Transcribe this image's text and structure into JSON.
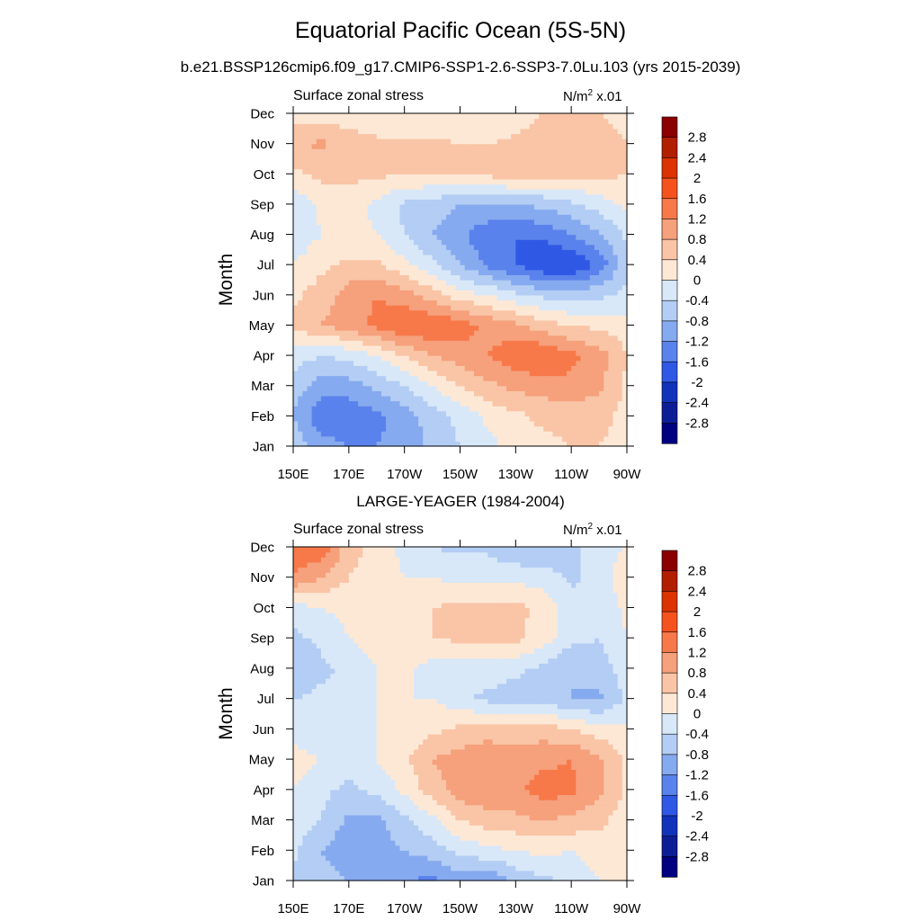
{
  "title": "Equatorial Pacific Ocean (5S-5N)",
  "subtitle": "b.e21.BSSP126cmip6.f09_g17.CMIP6-SSP1-2.6-SSP3-7.0Lu.103 (yrs 2015-2039)",
  "colorbar": {
    "levels": [
      "2.8",
      "2.4",
      "2",
      "1.6",
      "1.2",
      "0.8",
      "0.4",
      "0",
      "-0.4",
      "-0.8",
      "-1.2",
      "-1.6",
      "-2",
      "-2.4",
      "-2.8"
    ],
    "colors": [
      "#8b0000",
      "#b21e00",
      "#dd3300",
      "#f5521e",
      "#f7794a",
      "#f6a07c",
      "#f9c5a6",
      "#fde8d6",
      "#d8e8f8",
      "#b3cdf4",
      "#86aaef",
      "#5a82ec",
      "#2f59e5",
      "#1133bb",
      "#0d1d96",
      "#000080"
    ]
  },
  "panels": [
    {
      "chart_data": {
        "type": "heatmap",
        "title": "",
        "left_string": "Surface zonal stress",
        "right_string": "N/m",
        "right_sup": "2",
        "right_suffix": " x.01",
        "xlabel": "",
        "ylabel": "Month",
        "x": [
          150,
          160,
          170,
          180,
          190,
          200,
          210,
          220,
          230,
          240,
          250,
          260,
          270
        ],
        "x_tick_labels": [
          "150E",
          "170E",
          "170W",
          "150W",
          "130W",
          "110W",
          "90W"
        ],
        "y_tick_labels": [
          "Jan",
          "Feb",
          "Mar",
          "Apr",
          "May",
          "Jun",
          "Jul",
          "Aug",
          "Sep",
          "Oct",
          "Nov",
          "Dec"
        ],
        "units_scale": "x.01",
        "values": [
          [
            -0.5,
            -1.0,
            -1.2,
            -1.2,
            -1.1,
            -0.7,
            -0.4,
            -0.1,
            0.1,
            0.3,
            0.4,
            0.4,
            0.3
          ],
          [
            -0.8,
            -1.5,
            -1.5,
            -1.3,
            -1.0,
            -0.6,
            -0.3,
            0.1,
            0.3,
            0.5,
            0.5,
            0.5,
            0.3
          ],
          [
            -0.6,
            -1.0,
            -1.0,
            -0.7,
            -0.4,
            0.0,
            0.4,
            0.7,
            0.9,
            1.0,
            1.1,
            0.9,
            0.3
          ],
          [
            -0.2,
            -0.4,
            -0.3,
            0.0,
            0.4,
            0.8,
            1.0,
            1.2,
            1.5,
            1.6,
            1.3,
            1.0,
            0.4
          ],
          [
            0.5,
            0.8,
            1.0,
            1.3,
            1.6,
            1.6,
            1.4,
            1.1,
            0.9,
            0.6,
            0.4,
            0.3,
            0.2
          ],
          [
            0.3,
            0.6,
            1.0,
            1.2,
            1.0,
            0.6,
            0.2,
            0.0,
            -0.3,
            -0.5,
            -0.6,
            -0.5,
            -0.3
          ],
          [
            0.0,
            0.3,
            0.5,
            0.5,
            0.1,
            -0.3,
            -0.8,
            -1.3,
            -1.6,
            -2.0,
            -2.0,
            -1.5,
            -0.5
          ],
          [
            -0.3,
            0.0,
            0.1,
            0.0,
            -0.4,
            -0.8,
            -1.1,
            -1.5,
            -1.6,
            -1.5,
            -1.2,
            -0.9,
            -0.3
          ],
          [
            -0.3,
            0.1,
            0.2,
            -0.1,
            -0.5,
            -0.6,
            -0.8,
            -0.8,
            -0.8,
            -0.7,
            -0.5,
            -0.2,
            0.1
          ],
          [
            0.3,
            0.5,
            0.5,
            0.5,
            0.4,
            0.4,
            0.5,
            0.5,
            0.6,
            0.5,
            0.5,
            0.5,
            0.4
          ],
          [
            0.7,
            0.9,
            0.6,
            0.5,
            0.5,
            0.5,
            0.4,
            0.4,
            0.5,
            0.6,
            0.6,
            0.5,
            0.4
          ],
          [
            0.2,
            0.2,
            0.2,
            0.1,
            0.0,
            0.0,
            0.0,
            0.0,
            0.2,
            0.4,
            0.4,
            0.4,
            0.3
          ]
        ]
      }
    },
    {
      "heading": "LARGE-YEAGER (1984-2004)",
      "chart_data": {
        "type": "heatmap",
        "title": "LARGE-YEAGER (1984-2004)",
        "left_string": "Surface zonal stress",
        "right_string": "N/m",
        "right_sup": "2",
        "right_suffix": " x.01",
        "xlabel": "",
        "ylabel": "Month",
        "x": [
          150,
          160,
          170,
          180,
          190,
          200,
          210,
          220,
          230,
          240,
          250,
          260,
          270
        ],
        "x_tick_labels": [
          "150E",
          "170E",
          "170W",
          "150W",
          "130W",
          "110W",
          "90W"
        ],
        "y_tick_labels": [
          "Jan",
          "Feb",
          "Mar",
          "Apr",
          "May",
          "Jun",
          "Jul",
          "Aug",
          "Sep",
          "Oct",
          "Nov",
          "Dec"
        ],
        "units_scale": "x.01",
        "values": [
          [
            -0.5,
            -0.6,
            -0.8,
            -1.0,
            -1.2,
            -1.3,
            -1.0,
            -1.2,
            -0.7,
            -0.5,
            -0.3,
            0.0,
            0.2
          ],
          [
            -0.3,
            -0.8,
            -1.1,
            -1.0,
            -0.8,
            -0.6,
            -0.3,
            -0.1,
            0.0,
            0.1,
            0.0,
            0.2,
            0.2
          ],
          [
            -0.2,
            -0.4,
            -0.9,
            -0.9,
            -0.5,
            -0.1,
            0.4,
            0.6,
            0.7,
            0.8,
            0.7,
            0.5,
            0.2
          ],
          [
            0.0,
            -0.3,
            -0.5,
            -0.3,
            0.1,
            0.6,
            1.0,
            1.2,
            1.1,
            1.4,
            1.3,
            0.9,
            0.3
          ],
          [
            0.2,
            0.0,
            -0.2,
            0.0,
            0.3,
            0.8,
            1.0,
            1.1,
            1.0,
            1.1,
            1.2,
            0.9,
            0.3
          ],
          [
            -0.2,
            -0.3,
            -0.2,
            0.0,
            0.1,
            0.3,
            0.5,
            0.6,
            0.6,
            0.6,
            0.4,
            0.2,
            0.1
          ],
          [
            -0.4,
            -0.3,
            -0.2,
            0.0,
            0.0,
            0.0,
            -0.3,
            -0.5,
            -0.6,
            -0.6,
            -0.8,
            -0.9,
            -0.3
          ],
          [
            -0.8,
            -0.5,
            -0.3,
            0.0,
            0.1,
            -0.2,
            -0.3,
            -0.2,
            -0.3,
            -0.5,
            -0.8,
            -0.6,
            -0.2
          ],
          [
            -0.5,
            -0.3,
            0.0,
            0.2,
            0.3,
            0.4,
            0.5,
            0.6,
            0.5,
            0.2,
            -0.3,
            -0.4,
            0.0
          ],
          [
            -0.2,
            0.0,
            0.1,
            0.2,
            0.3,
            0.4,
            0.5,
            0.5,
            0.5,
            0.3,
            -0.2,
            -0.3,
            0.1
          ],
          [
            1.2,
            0.8,
            0.4,
            0.2,
            0.0,
            0.0,
            -0.1,
            -0.1,
            -0.1,
            -0.2,
            -0.5,
            -0.2,
            0.3
          ],
          [
            1.4,
            1.5,
            0.6,
            0.2,
            -0.1,
            -0.4,
            -0.5,
            -0.5,
            -0.8,
            -0.8,
            -0.5,
            -0.2,
            0.0
          ]
        ]
      }
    }
  ]
}
